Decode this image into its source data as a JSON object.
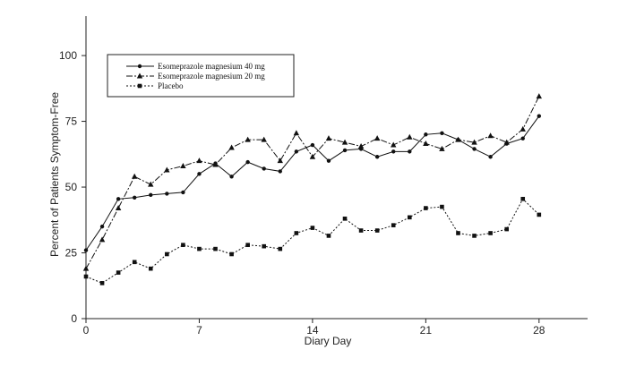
{
  "chart_data": {
    "type": "line",
    "title": "",
    "xlabel": "Diary Day",
    "ylabel": "Percent of Patients Symptom-Free",
    "xlim": [
      0,
      31
    ],
    "ylim": [
      0,
      115
    ],
    "xticks": [
      0,
      7,
      14,
      21,
      28
    ],
    "yticks": [
      0,
      25,
      50,
      75,
      100
    ],
    "grid": false,
    "legend_position": "top-left",
    "series": [
      {
        "name": "Esomeprazole magnesium 40 mg",
        "line_style": "solid",
        "marker": "circle",
        "x": [
          0,
          1,
          2,
          3,
          4,
          5,
          6,
          7,
          8,
          9,
          10,
          11,
          12,
          13,
          14,
          15,
          16,
          17,
          18,
          19,
          20,
          21,
          22,
          23,
          24,
          25,
          26,
          27,
          28
        ],
        "y": [
          26,
          35,
          45.5,
          46,
          47,
          47.5,
          48,
          55,
          59,
          54,
          59.5,
          57,
          56,
          63.5,
          66,
          60,
          64,
          64.5,
          61.5,
          63.5,
          63.5,
          70,
          70.5,
          68,
          64.5,
          61.5,
          66.5,
          68.5,
          77
        ]
      },
      {
        "name": "Esomeprazole magnesium 20 mg",
        "line_style": "dash-dot",
        "marker": "triangle",
        "x": [
          0,
          1,
          2,
          3,
          4,
          5,
          6,
          7,
          8,
          9,
          10,
          11,
          12,
          13,
          14,
          15,
          16,
          17,
          18,
          19,
          20,
          21,
          22,
          23,
          24,
          25,
          26,
          27,
          28
        ],
        "y": [
          19,
          30,
          42,
          54,
          51,
          56.5,
          58,
          60,
          58.5,
          65,
          68,
          68,
          60,
          70.5,
          61.5,
          68.5,
          67,
          65.5,
          68.5,
          66,
          69,
          66.5,
          64.5,
          68,
          67,
          69.5,
          67,
          72,
          84.5
        ]
      },
      {
        "name": "Placebo",
        "line_style": "dotted",
        "marker": "square",
        "x": [
          0,
          1,
          2,
          3,
          4,
          5,
          6,
          7,
          8,
          9,
          10,
          11,
          12,
          13,
          14,
          15,
          16,
          17,
          18,
          19,
          20,
          21,
          22,
          23,
          24,
          25,
          26,
          27,
          28
        ],
        "y": [
          16,
          13.5,
          17.5,
          21.5,
          19,
          24.5,
          28,
          26.5,
          26.5,
          24.5,
          28,
          27.5,
          26.5,
          32.5,
          34.5,
          31.5,
          38,
          33.5,
          33.5,
          35.5,
          38.5,
          42,
          42.5,
          32.5,
          31.5,
          32.5,
          34,
          45.5,
          39.5
        ]
      }
    ]
  }
}
